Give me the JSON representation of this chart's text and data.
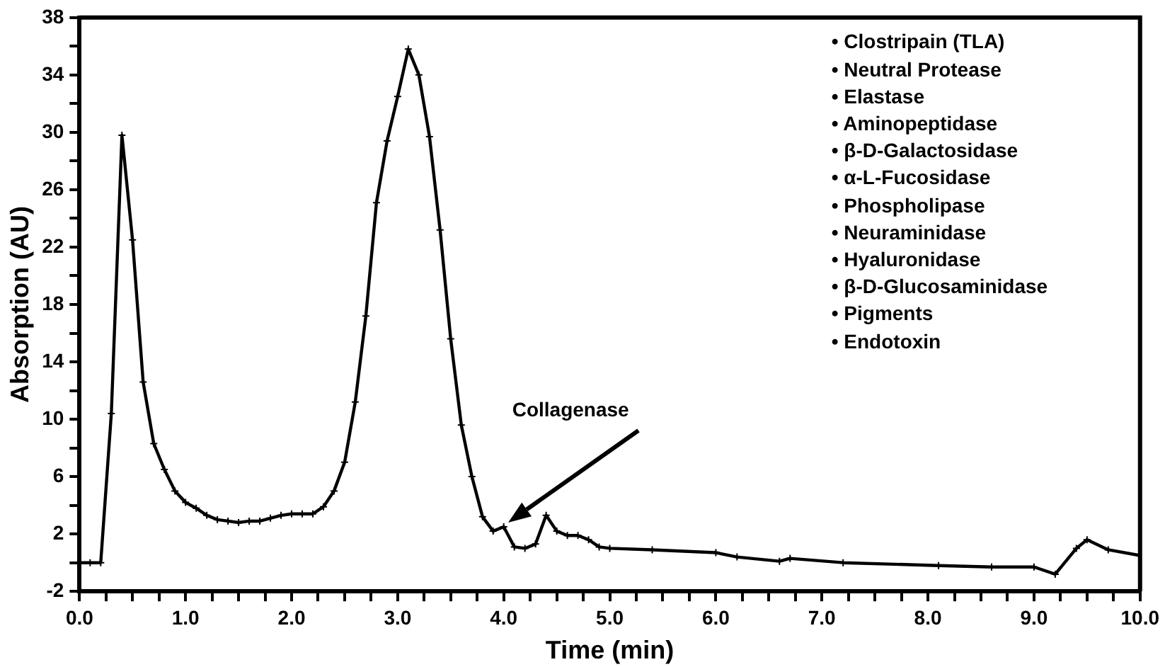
{
  "chart_data": {
    "type": "line",
    "xlabel": "Time (min)",
    "ylabel": "Absorption (AU)",
    "marker": "cross",
    "line_style": "solid",
    "legend": false,
    "grid": false,
    "x": [
      0,
      0.1,
      0.2,
      0.3,
      0.4,
      0.5,
      0.6,
      0.7,
      0.8,
      0.9,
      1.0,
      1.1,
      1.2,
      1.3,
      1.4,
      1.5,
      1.6,
      1.7,
      1.8,
      1.9,
      2.0,
      2.1,
      2.2,
      2.3,
      2.4,
      2.5,
      2.6,
      2.7,
      2.8,
      2.9,
      3.0,
      3.1,
      3.2,
      3.3,
      3.4,
      3.5,
      3.6,
      3.7,
      3.8,
      3.9,
      4.0,
      4.1,
      4.2,
      4.3,
      4.4,
      4.5,
      4.6,
      4.7,
      4.8,
      4.9,
      5.0,
      5.4,
      6.0,
      6.2,
      6.6,
      6.7,
      7.2,
      8.1,
      8.6,
      9.0,
      9.2,
      9.4,
      9.5,
      9.7,
      10.0
    ],
    "series": [
      {
        "color": "#000000",
        "values": [
          0,
          0,
          0,
          10.4,
          29.8,
          22.5,
          12.6,
          8.3,
          6.5,
          5.0,
          4.2,
          3.8,
          3.3,
          3.0,
          2.9,
          2.8,
          2.9,
          2.9,
          3.1,
          3.3,
          3.4,
          3.4,
          3.4,
          3.9,
          5.0,
          7.0,
          11.2,
          17.2,
          25.1,
          29.4,
          32.5,
          35.8,
          34.0,
          29.7,
          23.2,
          15.6,
          9.6,
          6.0,
          3.2,
          2.2,
          2.5,
          1.1,
          1.0,
          1.3,
          3.3,
          2.2,
          1.9,
          1.9,
          1.6,
          1.1,
          1.0,
          0.9,
          0.7,
          0.4,
          0.1,
          0.3,
          0.0,
          -0.2,
          -0.3,
          -0.3,
          -0.8,
          1.0,
          1.6,
          0.9,
          0.5
        ]
      }
    ],
    "xlim": [
      0,
      10
    ],
    "ylim": [
      -2,
      38
    ],
    "xticks": [
      {
        "value": 0,
        "label": "0.0"
      },
      {
        "value": 0.25,
        "label": null
      },
      {
        "value": 0.5,
        "label": null
      },
      {
        "value": 0.75,
        "label": null
      },
      {
        "value": 1,
        "label": "1.0"
      },
      {
        "value": 1.25,
        "label": null
      },
      {
        "value": 1.5,
        "label": null
      },
      {
        "value": 1.75,
        "label": null
      },
      {
        "value": 2,
        "label": "2.0"
      },
      {
        "value": 2.25,
        "label": null
      },
      {
        "value": 2.5,
        "label": null
      },
      {
        "value": 2.75,
        "label": null
      },
      {
        "value": 3,
        "label": "3.0"
      },
      {
        "value": 3.25,
        "label": null
      },
      {
        "value": 3.5,
        "label": null
      },
      {
        "value": 3.75,
        "label": null
      },
      {
        "value": 4,
        "label": "4.0"
      },
      {
        "value": 4.25,
        "label": null
      },
      {
        "value": 4.5,
        "label": null
      },
      {
        "value": 4.75,
        "label": null
      },
      {
        "value": 5,
        "label": "5.0"
      },
      {
        "value": 5.25,
        "label": null
      },
      {
        "value": 5.5,
        "label": null
      },
      {
        "value": 5.75,
        "label": null
      },
      {
        "value": 6,
        "label": "6.0"
      },
      {
        "value": 6.25,
        "label": null
      },
      {
        "value": 6.5,
        "label": null
      },
      {
        "value": 6.75,
        "label": null
      },
      {
        "value": 7,
        "label": "7.0"
      },
      {
        "value": 7.25,
        "label": null
      },
      {
        "value": 7.5,
        "label": null
      },
      {
        "value": 7.75,
        "label": null
      },
      {
        "value": 8,
        "label": "8.0"
      },
      {
        "value": 8.25,
        "label": null
      },
      {
        "value": 8.5,
        "label": null
      },
      {
        "value": 8.75,
        "label": null
      },
      {
        "value": 9,
        "label": "9.0"
      },
      {
        "value": 9.25,
        "label": null
      },
      {
        "value": 9.5,
        "label": null
      },
      {
        "value": 9.75,
        "label": null
      },
      {
        "value": 10,
        "label": "10.0"
      }
    ],
    "yticks": [
      -2,
      {
        "value": 0,
        "label": null
      },
      2,
      {
        "value": 4,
        "label": null
      },
      6,
      {
        "value": 8,
        "label": null
      },
      10,
      {
        "value": 12,
        "label": null
      },
      14,
      {
        "value": 16,
        "label": null
      },
      18,
      {
        "value": 20,
        "label": null
      },
      22,
      {
        "value": 24,
        "label": null
      },
      26,
      {
        "value": 28,
        "label": null
      },
      30,
      {
        "value": 32,
        "label": null
      },
      34,
      {
        "value": 36,
        "label": null
      },
      38
    ],
    "annotations": [
      "Collagenase",
      "• Clostripain (TLA)",
      "• Neutral Protease",
      "• Elastase",
      "• Aminopeptidase",
      "• β-D-Galactosidase",
      "• α-L-Fucosidase",
      "• Phospholipase",
      "• Neuraminidase",
      "• Hyaluronidase",
      "• β-D-Glucosaminidase",
      "• Pigments",
      "• Endotoxin"
    ]
  }
}
